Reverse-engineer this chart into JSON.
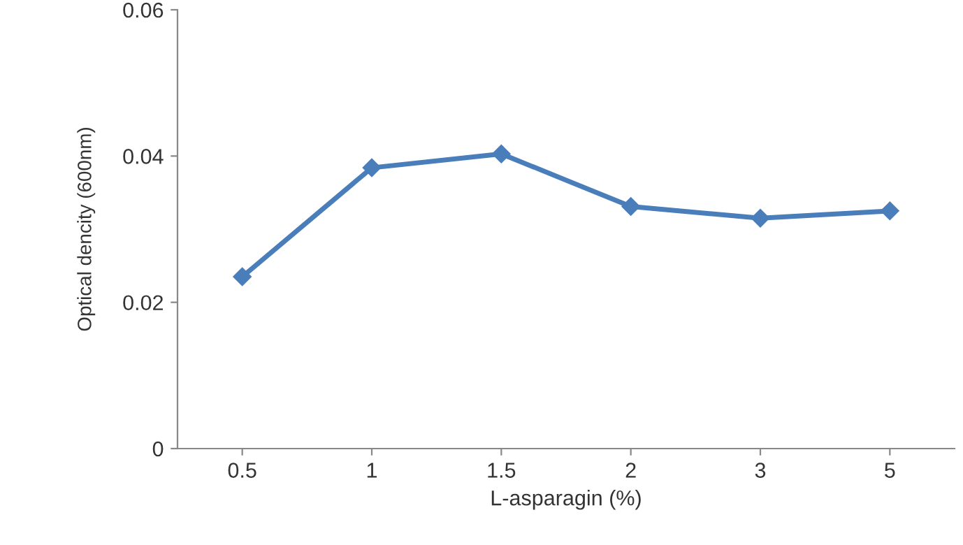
{
  "chart_data": {
    "type": "line",
    "xlabel": "L-asparagin (%)",
    "ylabel": "Optical dencity (600nm)",
    "categories": [
      "0.5",
      "1",
      "1.5",
      "2",
      "3",
      "5"
    ],
    "series": [
      {
        "color": "#4a7ebb",
        "values": [
          0.0235,
          0.0384,
          0.0403,
          0.0331,
          0.0315,
          0.0325
        ]
      }
    ],
    "ylim": [
      0,
      0.06
    ],
    "yticks": [
      0,
      0.02,
      0.04,
      0.06
    ],
    "grid": false,
    "marker": "diamond",
    "line_style": "solid"
  }
}
